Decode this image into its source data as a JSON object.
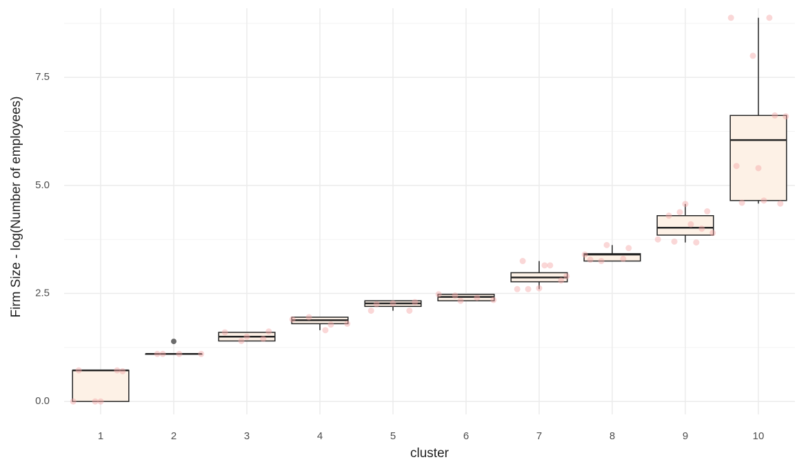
{
  "chart_data": {
    "type": "box",
    "x_label": "cluster",
    "y_label": "Firm Size - log(Number of employees)",
    "categories": [
      "1",
      "2",
      "3",
      "4",
      "5",
      "6",
      "7",
      "8",
      "9",
      "10"
    ],
    "boxes": [
      {
        "min": 0,
        "q1": 0,
        "median": 0.72,
        "q3": 0.72,
        "max": 0.72,
        "outliers": [],
        "points": [
          0,
          0,
          0.72,
          0.72,
          0,
          0.7
        ]
      },
      {
        "min": 1.1,
        "q1": 1.1,
        "median": 1.1,
        "q3": 1.1,
        "max": 1.1,
        "outliers": [
          1.39
        ],
        "points": [
          1.1,
          1.1,
          1.1,
          1.1
        ]
      },
      {
        "min": 1.4,
        "q1": 1.4,
        "median": 1.5,
        "q3": 1.6,
        "max": 1.6,
        "outliers": [],
        "points": [
          1.4,
          1.45,
          1.6,
          1.5,
          1.62
        ]
      },
      {
        "min": 1.65,
        "q1": 1.8,
        "median": 1.88,
        "q3": 1.95,
        "max": 1.95,
        "outliers": [],
        "points": [
          1.65,
          1.8,
          1.95,
          1.78,
          1.9
        ]
      },
      {
        "min": 2.1,
        "q1": 2.2,
        "median": 2.27,
        "q3": 2.33,
        "max": 2.33,
        "outliers": [],
        "points": [
          2.1,
          2.1,
          2.27,
          2.3,
          2.25
        ]
      },
      {
        "min": 2.33,
        "q1": 2.33,
        "median": 2.42,
        "q3": 2.48,
        "max": 2.48,
        "outliers": [],
        "points": [
          2.35,
          2.45,
          2.4,
          2.48,
          2.33
        ]
      },
      {
        "min": 2.6,
        "q1": 2.77,
        "median": 2.87,
        "q3": 2.98,
        "max": 3.25,
        "outliers": [],
        "points": [
          2.6,
          2.62,
          2.8,
          3.25,
          3.15,
          2.9,
          2.6,
          3.15
        ]
      },
      {
        "min": 3.25,
        "q1": 3.25,
        "median": 3.4,
        "q3": 3.42,
        "max": 3.62,
        "outliers": [],
        "points": [
          3.25,
          3.3,
          3.4,
          3.62,
          3.55,
          3.28
        ]
      },
      {
        "min": 3.68,
        "q1": 3.85,
        "median": 4.02,
        "q3": 4.3,
        "max": 4.57,
        "outliers": [],
        "points": [
          4.57,
          4.4,
          4.3,
          4.1,
          3.9,
          3.7,
          3.68,
          3.75,
          4.38,
          4.0
        ]
      },
      {
        "min": 4.58,
        "q1": 4.65,
        "median": 6.05,
        "q3": 6.62,
        "max": 8.88,
        "outliers": [],
        "points": [
          8.88,
          8.88,
          8.0,
          6.62,
          5.45,
          5.4,
          4.58,
          4.6,
          4.65,
          6.6
        ]
      }
    ],
    "box_color": "#fdf1e6",
    "point_color": "#f4a6a6",
    "outlier_color": "#6b6b6b",
    "ylim": [
      -0.3,
      9.1
    ],
    "yticks": [
      {
        "value": 0,
        "label": "0.0"
      },
      2.5,
      {
        "value": 5,
        "label": "5.0"
      },
      7.5
    ],
    "yminorticks": [
      1.25,
      3.75,
      6.25,
      8.75
    ],
    "grid": true
  }
}
